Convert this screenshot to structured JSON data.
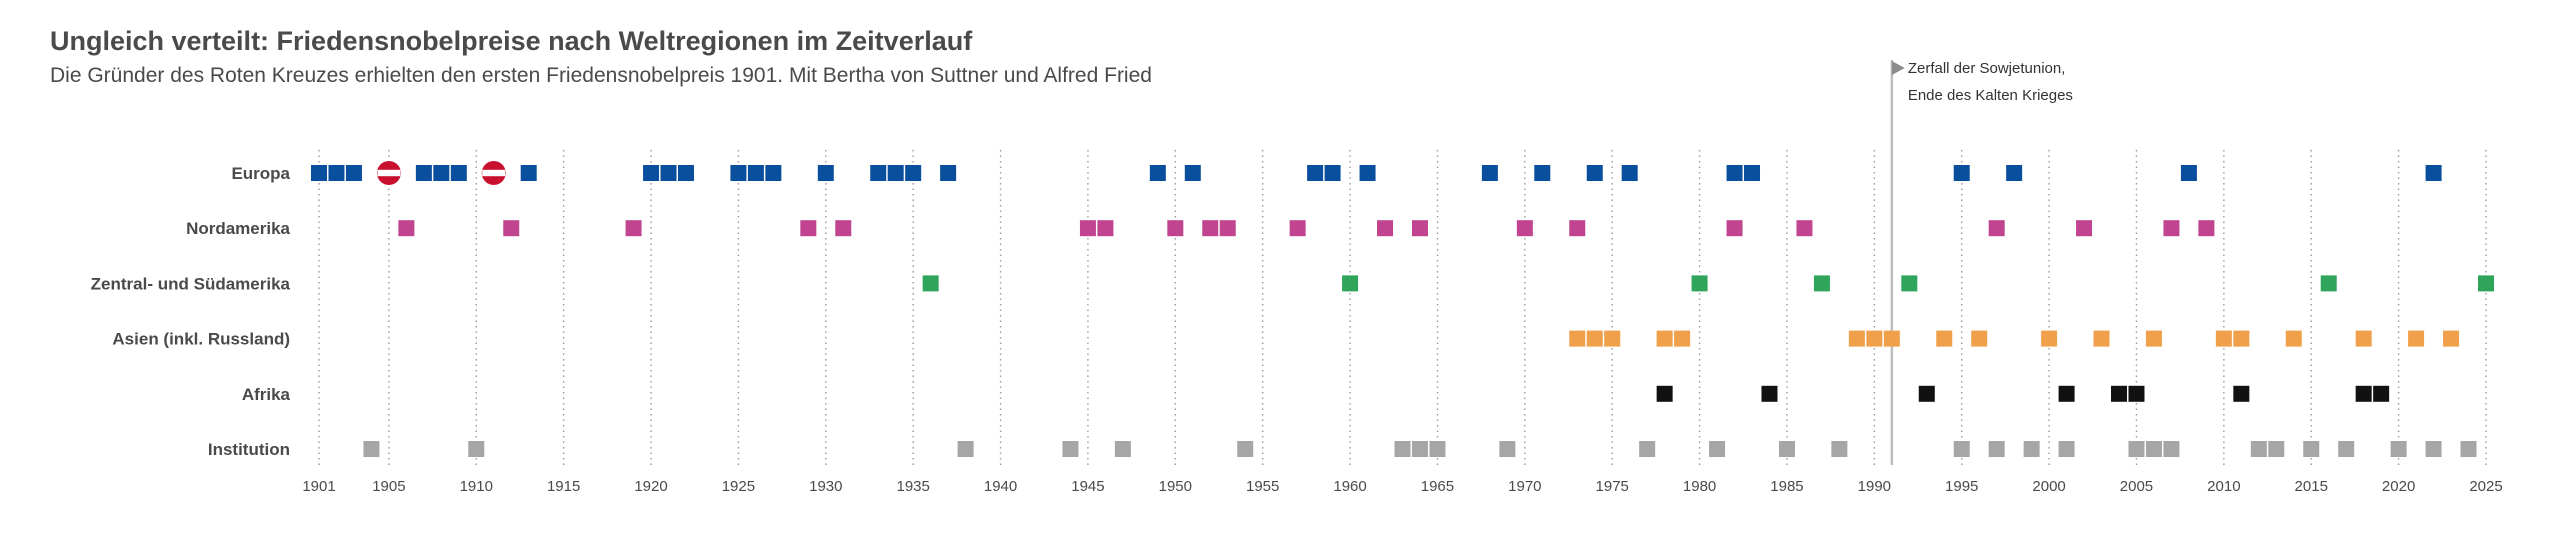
{
  "chart_data": {
    "type": "scatter",
    "title": "Ungleich verteilt: Friedensnobelpreise nach Weltregionen im Zeitverlauf",
    "subtitle": "Die Gründer des Roten Kreuzes erhielten den ersten Friedensnobelpreis 1901. Mit Bertha von Suttner und Alfred Fried",
    "x_range": [
      1901,
      2025
    ],
    "x_ticks": [
      1901,
      1905,
      1910,
      1915,
      1920,
      1925,
      1930,
      1935,
      1940,
      1945,
      1950,
      1955,
      1960,
      1965,
      1970,
      1975,
      1980,
      1985,
      1990,
      1995,
      2000,
      2005,
      2010,
      2015,
      2020,
      2025
    ],
    "annotation": {
      "year": 1991,
      "lines": [
        "Zerfall der Sowjetunion,",
        "Ende des Kalten Krieges"
      ],
      "color": "#bfbfbf"
    },
    "austria_markers": {
      "years": [
        1905,
        1911
      ],
      "row": "Europa",
      "red": "#c8102e",
      "white": "#ffffff"
    },
    "series": [
      {
        "name": "Europa",
        "color": "#0a4f9e",
        "years": [
          1901,
          1902,
          1903,
          1907,
          1908,
          1909,
          1913,
          1920,
          1921,
          1922,
          1925,
          1926,
          1927,
          1930,
          1933,
          1934,
          1935,
          1937,
          1949,
          1951,
          1958,
          1959,
          1961,
          1968,
          1971,
          1974,
          1976,
          1982,
          1983,
          1995,
          1998,
          2008,
          2022
        ]
      },
      {
        "name": "Nordamerika",
        "color": "#c0448f",
        "years": [
          1906,
          1912,
          1919,
          1929,
          1931,
          1945,
          1946,
          1950,
          1952,
          1953,
          1957,
          1962,
          1964,
          1970,
          1973,
          1982,
          1986,
          1997,
          2002,
          2007,
          2009
        ]
      },
      {
        "name": "Zentral- und Südamerika",
        "color": "#2ea55a",
        "years": [
          1936,
          1960,
          1980,
          1987,
          1992,
          2016,
          2025
        ]
      },
      {
        "name": "Asien (inkl. Russland)",
        "color": "#f0a04b",
        "years": [
          1973,
          1974,
          1975,
          1978,
          1979,
          1989,
          1990,
          1991,
          1994,
          1996,
          2000,
          2003,
          2006,
          2010,
          2011,
          2014,
          2018,
          2021,
          2023
        ]
      },
      {
        "name": "Afrika",
        "color": "#111111",
        "years": [
          1978,
          1984,
          1993,
          2001,
          2004,
          2005,
          2011,
          2018,
          2019
        ]
      },
      {
        "name": "Institution",
        "color": "#a6a6a6",
        "years": [
          1904,
          1910,
          1938,
          1944,
          1947,
          1954,
          1963,
          1964,
          1965,
          1969,
          1977,
          1981,
          1985,
          1988,
          1995,
          1997,
          1999,
          2001,
          2005,
          2006,
          2007,
          2012,
          2013,
          2015,
          2017,
          2020,
          2022,
          2024
        ]
      }
    ]
  }
}
